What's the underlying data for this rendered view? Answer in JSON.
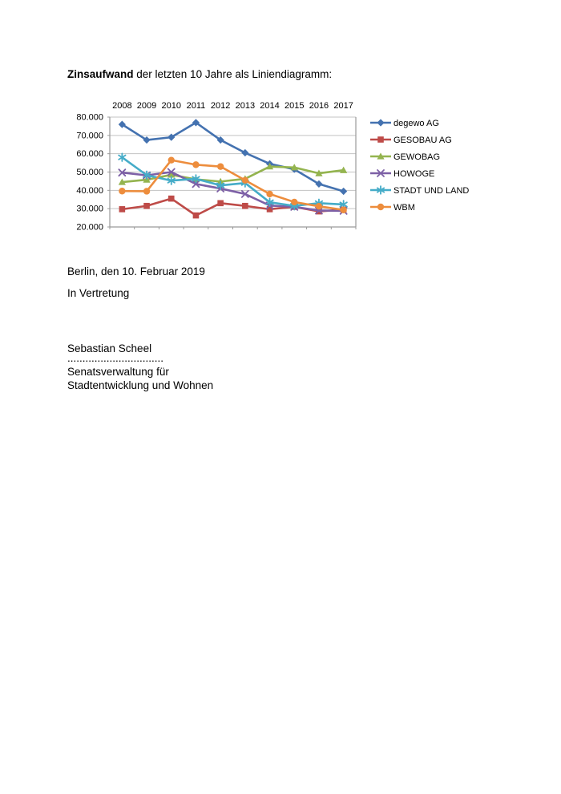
{
  "document": {
    "title_bold": "Zinsaufwand",
    "title_rest": " der letzten 10 Jahre als Liniendiagramm:",
    "place_date": "Berlin, den 10. Februar 2019",
    "in_vertretung": "In Vertretung",
    "signer": "Sebastian Scheel",
    "signature_dots": "................................",
    "org_line1": "Senatsverwaltung für",
    "org_line2": "Stadtentwicklung und Wohnen"
  },
  "chart_data": {
    "type": "line",
    "title": "",
    "categories": [
      "2008",
      "2009",
      "2010",
      "2011",
      "2012",
      "2013",
      "2014",
      "2015",
      "2016",
      "2017"
    ],
    "ylim": [
      20000,
      80000
    ],
    "ytick_step": 10000,
    "ytick_labels": [
      "20.000",
      "30.000",
      "40.000",
      "50.000",
      "60.000",
      "70.000",
      "80.000"
    ],
    "grid": true,
    "legend_position": "right",
    "axis_color": "#9a9a9a",
    "grid_color": "#c3c3c3",
    "series": [
      {
        "name": "degewo AG",
        "color": "#4472B0",
        "marker": "diamond",
        "values": [
          76000,
          67500,
          69000,
          77000,
          67500,
          60500,
          54500,
          51500,
          43500,
          39500
        ]
      },
      {
        "name": "GESOBAU AG",
        "color": "#BE4B48",
        "marker": "square",
        "values": [
          29700,
          31500,
          35500,
          26300,
          33000,
          31500,
          29700,
          31000,
          28500,
          29500
        ]
      },
      {
        "name": "GEWOBAG",
        "color": "#94B44F",
        "marker": "triangle",
        "values": [
          44500,
          45800,
          48500,
          46000,
          44800,
          46300,
          53000,
          52500,
          49300,
          51000
        ]
      },
      {
        "name": "HOWOGE",
        "color": "#7D60A6",
        "marker": "x",
        "values": [
          49700,
          48200,
          50000,
          43500,
          41000,
          38000,
          31700,
          31000,
          29000,
          28800
        ]
      },
      {
        "name": "STADT UND LAND",
        "color": "#45ACC8",
        "marker": "asterisk",
        "values": [
          58000,
          48300,
          45300,
          46300,
          42700,
          44000,
          33500,
          31500,
          33000,
          32300
        ]
      },
      {
        "name": "WBM",
        "color": "#ED8D3D",
        "marker": "circle",
        "values": [
          39600,
          39500,
          56500,
          54000,
          53000,
          45500,
          38000,
          33600,
          31300,
          29300
        ]
      }
    ]
  }
}
